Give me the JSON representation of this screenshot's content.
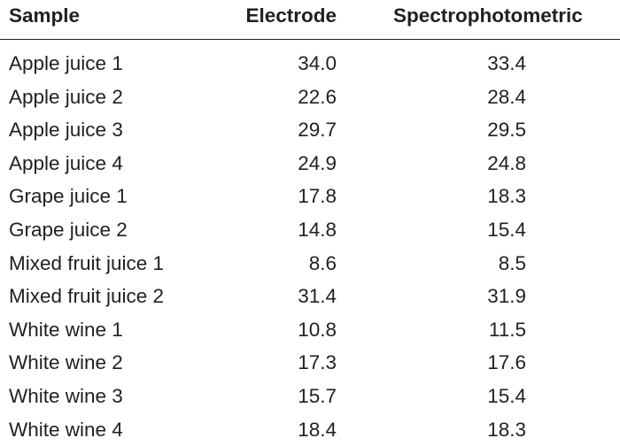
{
  "table": {
    "headers": {
      "sample": "Sample",
      "electrode": "Electrode",
      "spectrophotometric": "Spectrophotometric"
    },
    "rows": [
      {
        "sample": "Apple juice 1",
        "electrode": "34.0",
        "spectrophotometric": "33.4"
      },
      {
        "sample": "Apple juice 2",
        "electrode": "22.6",
        "spectrophotometric": "28.4"
      },
      {
        "sample": "Apple juice 3",
        "electrode": "29.7",
        "spectrophotometric": "29.5"
      },
      {
        "sample": "Apple juice 4",
        "electrode": "24.9",
        "spectrophotometric": "24.8"
      },
      {
        "sample": "Grape juice 1",
        "electrode": "17.8",
        "spectrophotometric": "18.3"
      },
      {
        "sample": "Grape juice 2",
        "electrode": "14.8",
        "spectrophotometric": "15.4"
      },
      {
        "sample": "Mixed fruit juice 1",
        "electrode": "8.6",
        "spectrophotometric": "8.5"
      },
      {
        "sample": "Mixed fruit juice 2",
        "electrode": "31.4",
        "spectrophotometric": "31.9"
      },
      {
        "sample": "White wine 1",
        "electrode": "10.8",
        "spectrophotometric": "11.5"
      },
      {
        "sample": "White wine 2",
        "electrode": "17.3",
        "spectrophotometric": "17.6"
      },
      {
        "sample": "White wine 3",
        "electrode": "15.7",
        "spectrophotometric": "15.4"
      },
      {
        "sample": "White wine 4",
        "electrode": "18.4",
        "spectrophotometric": "18.3"
      }
    ]
  }
}
